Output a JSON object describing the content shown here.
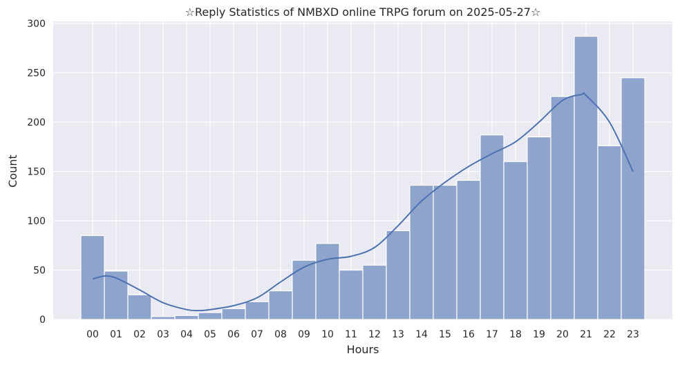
{
  "chart_data": {
    "type": "bar",
    "title": "☆Reply Statistics of NMBXD online TRPG forum on 2025-05-27☆",
    "xlabel": "Hours",
    "ylabel": "Count",
    "ylim": [
      0,
      302
    ],
    "yticks": [
      0,
      50,
      100,
      150,
      200,
      250,
      300
    ],
    "grid": true,
    "categories": [
      "00",
      "01",
      "02",
      "03",
      "04",
      "05",
      "06",
      "07",
      "08",
      "09",
      "10",
      "11",
      "12",
      "13",
      "14",
      "15",
      "16",
      "17",
      "18",
      "19",
      "20",
      "21",
      "22",
      "23"
    ],
    "values": [
      85,
      49,
      25,
      3,
      4,
      7,
      11,
      18,
      29,
      60,
      77,
      50,
      55,
      90,
      136,
      136,
      141,
      187,
      160,
      185,
      226,
      287,
      176,
      245
    ],
    "kde": {
      "x": [
        0,
        0.5,
        1,
        2,
        3,
        4,
        4.5,
        5,
        6,
        7,
        8,
        9,
        10,
        11,
        12,
        13,
        14,
        15,
        16,
        17,
        18,
        19,
        20,
        20.8,
        21,
        22,
        23
      ],
      "y": [
        41,
        44,
        42,
        30,
        17,
        10,
        9,
        10,
        14,
        22,
        38,
        53,
        61,
        64,
        73,
        95,
        120,
        139,
        155,
        168,
        180,
        200,
        222,
        228,
        227,
        200,
        150
      ]
    },
    "colors": {
      "bar": "#8fa4cc",
      "line": "#4c72b0",
      "background": "#eaeaf2",
      "grid": "#ffffff"
    }
  }
}
